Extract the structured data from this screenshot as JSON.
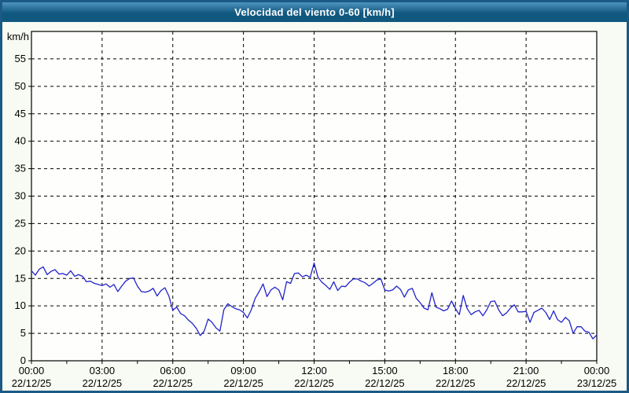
{
  "window": {
    "title": "Velocidad del viento 0-60 [km/h]"
  },
  "colors": {
    "frame": "#1b5a86",
    "titlebar_top": "#4e94c0",
    "titlebar": "#11587f",
    "title_text": "#ffffff",
    "page_bg": "#f8fbf3",
    "plot_bg": "#fefffc",
    "grid": "#000000",
    "axis_text": "#000000",
    "line": "#2222cc"
  },
  "chart_data": {
    "type": "line",
    "title": "Velocidad del viento 0-60 [km/h]",
    "xlabel": "",
    "ylabel": "km/h",
    "ylim": [
      0,
      60
    ],
    "y_tick_step": 5,
    "y_label_max": 55,
    "x_range_minutes": [
      0,
      1440
    ],
    "x_major_tick_minutes": 180,
    "x_minor_tick_minutes": 90,
    "grid": "dashed black, every 5 km/h horizontal and every 3 h vertical",
    "legend": "none",
    "x_tick_labels": [
      {
        "time": "00:00",
        "date": "22/12/25"
      },
      {
        "time": "03:00",
        "date": "22/12/25"
      },
      {
        "time": "06:00",
        "date": "22/12/25"
      },
      {
        "time": "09:00",
        "date": "22/12/25"
      },
      {
        "time": "12:00",
        "date": "22/12/25"
      },
      {
        "time": "15:00",
        "date": "22/12/25"
      },
      {
        "time": "18:00",
        "date": "22/12/25"
      },
      {
        "time": "21:00",
        "date": "22/12/25"
      },
      {
        "time": "00:00",
        "date": "23/12/25"
      }
    ],
    "series": [
      {
        "name": "Velocidad del viento",
        "color": "#2222cc",
        "sample_interval_min": 10,
        "values": [
          16.4,
          15.6,
          16.7,
          17.1,
          15.7,
          16.3,
          16.6,
          15.8,
          15.9,
          15.6,
          16.4,
          15.4,
          15.7,
          15.4,
          14.4,
          14.5,
          14.1,
          13.9,
          13.7,
          14.0,
          13.4,
          13.9,
          12.6,
          13.6,
          14.5,
          15.0,
          15.1,
          13.6,
          12.6,
          12.5,
          12.7,
          13.2,
          11.8,
          12.8,
          13.3,
          11.8,
          9.2,
          9.8,
          8.6,
          8.2,
          7.4,
          6.8,
          5.9,
          4.6,
          5.4,
          7.6,
          7.0,
          6.0,
          5.4,
          9.3,
          10.4,
          9.9,
          9.5,
          9.3,
          8.8,
          7.8,
          9.3,
          11.4,
          12.6,
          14.0,
          11.7,
          12.9,
          13.4,
          12.9,
          11.1,
          14.4,
          14.1,
          15.9,
          16.0,
          15.3,
          15.6,
          15.2,
          17.8,
          15.2,
          14.3,
          13.7,
          13.0,
          14.4,
          12.8,
          13.6,
          13.5,
          14.3,
          14.9,
          14.9,
          14.5,
          14.2,
          13.6,
          14.1,
          14.7,
          14.9,
          12.9,
          12.7,
          12.9,
          13.6,
          13.0,
          11.6,
          12.9,
          13.2,
          11.4,
          10.6,
          9.6,
          9.3,
          12.4,
          9.8,
          9.5,
          9.1,
          9.4,
          10.9,
          9.5,
          8.4,
          11.9,
          9.5,
          8.4,
          8.9,
          9.2,
          8.2,
          9.3,
          10.8,
          10.9,
          9.3,
          8.2,
          8.7,
          9.6,
          10.2,
          8.9,
          8.9,
          9.0,
          7.0,
          8.8,
          9.2,
          9.6,
          8.8,
          7.5,
          9.1,
          7.5,
          7.0,
          7.9,
          7.3,
          5.0,
          6.2,
          6.2,
          5.4,
          5.2,
          4.0,
          4.7
        ]
      }
    ]
  }
}
